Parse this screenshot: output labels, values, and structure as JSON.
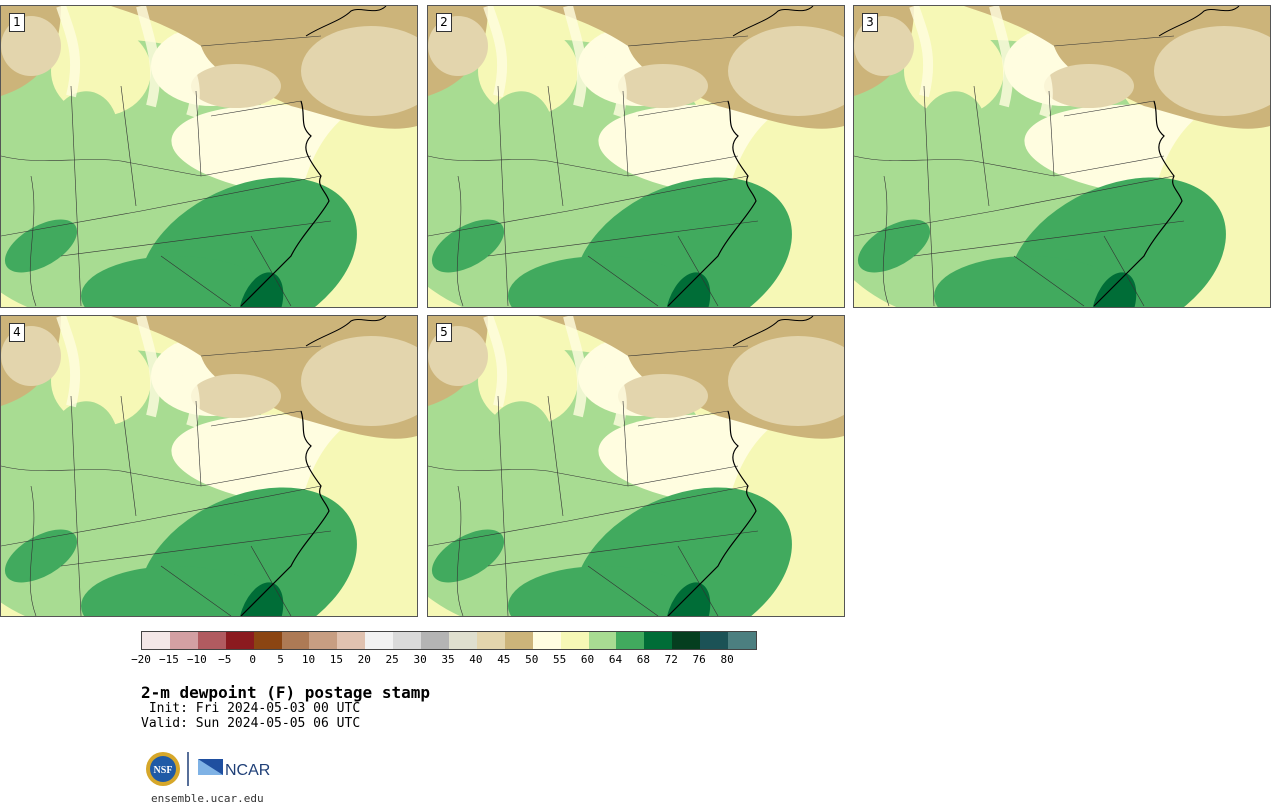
{
  "panels": [
    {
      "label": "1",
      "variant": 0
    },
    {
      "label": "2",
      "variant": 1
    },
    {
      "label": "3",
      "variant": 2
    },
    {
      "label": "4",
      "variant": 3
    },
    {
      "label": "5",
      "variant": 4
    }
  ],
  "colorbar": {
    "colors": [
      "#f3e7e7",
      "#d3a0a3",
      "#b15b60",
      "#8b1a1f",
      "#8b4512",
      "#ad7a55",
      "#c79e82",
      "#e0c2b0",
      "#f2f2f2",
      "#dadada",
      "#b4b4b4",
      "#dfdfcf",
      "#e3d5ad",
      "#ccb47a",
      "#fffde0",
      "#f6f8b6",
      "#a8dc92",
      "#41aa5e",
      "#006d37",
      "#053e1f",
      "#1b5256",
      "#4c7f80"
    ],
    "tick_labels": [
      "-20",
      "-15",
      "-10",
      "-5",
      "0",
      "5",
      "10",
      "15",
      "20",
      "25",
      "30",
      "35",
      "40",
      "45",
      "50",
      "55",
      "60",
      "64",
      "68",
      "72",
      "76",
      "80"
    ]
  },
  "title": "2-m dewpoint (F) postage stamp",
  "init": " Init: Fri 2024-05-03 00 UTC",
  "valid": "Valid: Sun 2024-05-05 06 UTC",
  "logos": {
    "nsf": "NSF",
    "ncar": "NCAR"
  },
  "website": "ensemble.ucar.edu"
}
